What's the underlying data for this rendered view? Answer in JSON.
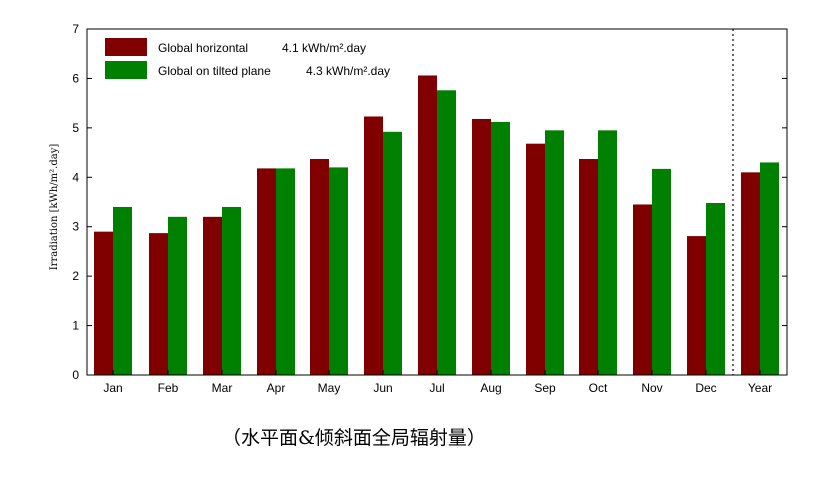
{
  "caption": "（水平面&倾斜面全局辐射量）",
  "chart_data": {
    "type": "bar",
    "ylabel": "Irradiation [kWh/m².day]",
    "xlabel": "",
    "ylim": [
      0,
      7
    ],
    "yticks": [
      "0",
      "1",
      "2",
      "3",
      "4",
      "5",
      "6",
      "7"
    ],
    "categories": [
      "Jan",
      "Feb",
      "Mar",
      "Apr",
      "May",
      "Jun",
      "Jul",
      "Aug",
      "Sep",
      "Oct",
      "Nov",
      "Dec",
      "Year"
    ],
    "series": [
      {
        "name": "Global horizontal",
        "color": "#800000",
        "values": [
          2.9,
          2.87,
          3.2,
          4.18,
          4.37,
          5.23,
          6.06,
          5.18,
          4.68,
          4.37,
          3.45,
          2.81,
          4.1
        ]
      },
      {
        "name": "Global on tilted plane",
        "color": "#008000",
        "values": [
          3.4,
          3.2,
          3.4,
          4.18,
          4.2,
          4.92,
          5.76,
          5.12,
          4.95,
          4.95,
          4.17,
          3.48,
          4.3
        ]
      }
    ],
    "legend": [
      {
        "label": "Global horizontal",
        "value": "4.1 kWh/m².day"
      },
      {
        "label": "Global on tilted plane",
        "value": "4.3 kWh/m².day"
      }
    ],
    "legend_position": "top-left",
    "year_separator": "dotted"
  }
}
